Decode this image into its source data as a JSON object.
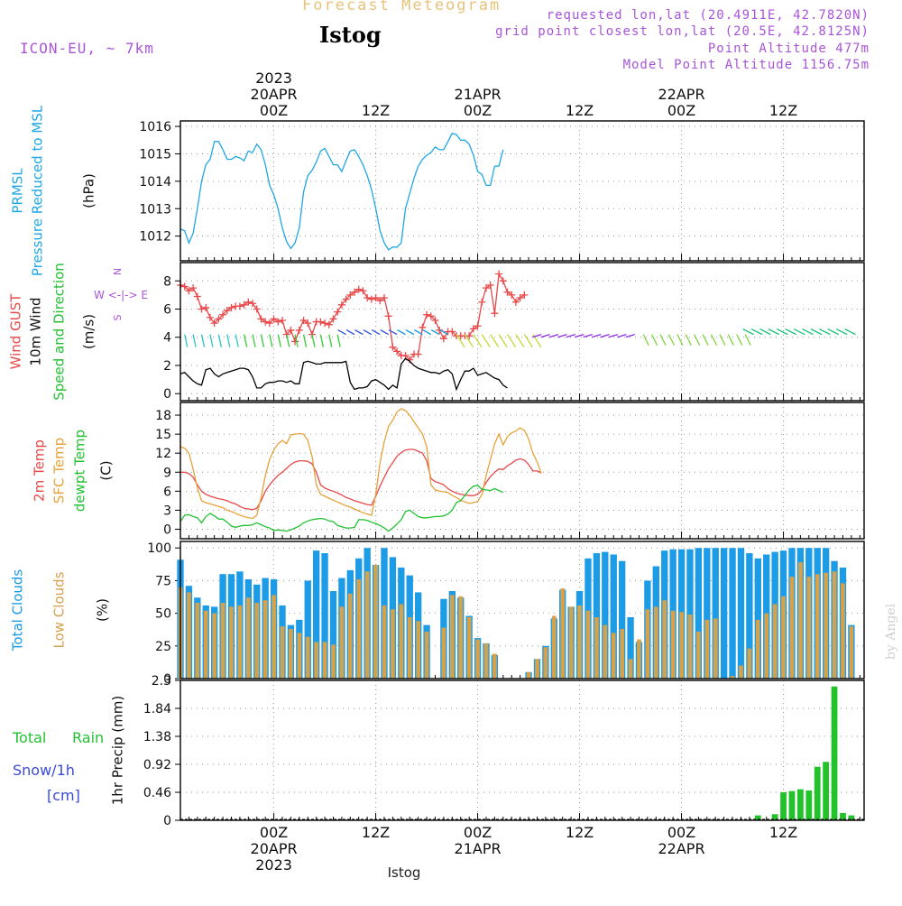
{
  "header": {
    "title": "Forecast Meteogram",
    "location": "Istog",
    "model": "ICON-EU, ~ 7km",
    "requested": "requested lon,lat (20.4911E, 42.7820N)",
    "grid_point": "grid point closest lon,lat (20.5E, 42.8125N)",
    "point_altitude": "Point Altitude 477m",
    "model_altitude": "Model Point Altitude 1156.75m",
    "credit": "by Angel",
    "footer_location": "Istog"
  },
  "time_axis": {
    "top_labels": [
      {
        "hour": 6,
        "lines": [
          "2023",
          "20APR",
          "00Z"
        ]
      },
      {
        "hour": 18,
        "lines": [
          "12Z"
        ]
      },
      {
        "hour": 30,
        "lines": [
          "21APR",
          "00Z"
        ]
      },
      {
        "hour": 42,
        "lines": [
          "12Z"
        ]
      },
      {
        "hour": 54,
        "lines": [
          "22APR",
          "00Z"
        ]
      },
      {
        "hour": 66,
        "lines": [
          "12Z"
        ]
      }
    ],
    "bottom_labels": [
      {
        "hour": 6,
        "lines": [
          "00Z",
          "20APR",
          "2023"
        ]
      },
      {
        "hour": 18,
        "lines": [
          "12Z"
        ]
      },
      {
        "hour": 30,
        "lines": [
          "00Z",
          "21APR"
        ]
      },
      {
        "hour": 42,
        "lines": [
          "12Z"
        ]
      },
      {
        "hour": 54,
        "lines": [
          "00Z",
          "22APR"
        ]
      },
      {
        "hour": 66,
        "lines": [
          "12Z"
        ]
      }
    ]
  },
  "chart_data": [
    {
      "type": "line",
      "title": "Pressure",
      "ylabel_lines": [
        "PRMSL",
        "Pressure Reduced to MSL",
        "(hPa)"
      ],
      "ylim": [
        1011.1,
        1016.2
      ],
      "yticks": [
        1012,
        1013,
        1014,
        1015,
        1016
      ],
      "grid": true,
      "x_start_hour": -5,
      "x_step_hours": 0.5,
      "series": [
        {
          "name": "PRMSL",
          "color": "#1ea7e4",
          "values": [
            1012.25,
            1012.2,
            1011.75,
            1012.1,
            1013.0,
            1014.0,
            1014.6,
            1014.8,
            1015.45,
            1015.45,
            1015.15,
            1014.8,
            1014.8,
            1014.9,
            1014.85,
            1014.75,
            1015.1,
            1015.05,
            1015.35,
            1015.15,
            1014.6,
            1013.85,
            1013.5,
            1013.0,
            1012.3,
            1011.8,
            1011.55,
            1011.75,
            1012.3,
            1013.6,
            1014.2,
            1014.4,
            1014.7,
            1015.1,
            1015.2,
            1014.9,
            1014.6,
            1014.6,
            1014.35,
            1014.75,
            1015.1,
            1015.15,
            1014.9,
            1014.6,
            1014.2,
            1013.7,
            1013.0,
            1012.2,
            1011.75,
            1011.5,
            1011.6,
            1011.6,
            1011.75,
            1013.0,
            1013.55,
            1014.1,
            1014.55,
            1014.8,
            1014.95,
            1015.05,
            1015.25,
            1015.15,
            1015.15,
            1015.45,
            1015.75,
            1015.7,
            1015.5,
            1015.5,
            1015.35,
            1014.95,
            1014.35,
            1014.25,
            1013.85,
            1013.85,
            1014.55,
            1014.55,
            1015.15
          ]
        }
      ]
    },
    {
      "type": "line",
      "title": "Wind",
      "ylabel_lines": [
        "Wind GUST",
        "10m Wind",
        "Speed and Direction",
        "(m/s)"
      ],
      "compass": [
        "N",
        "W <-|-> E",
        "S"
      ],
      "ylim": [
        -0.5,
        9.3
      ],
      "yticks": [
        0,
        2,
        4,
        6,
        8
      ],
      "grid": true,
      "x_start_hour": -5,
      "x_step_hours": 0.5,
      "series": [
        {
          "name": "Wind GUST",
          "color": "#e8494a",
          "marker": "+",
          "values": [
            7.7,
            7.6,
            7.3,
            7.5,
            6.9,
            6.0,
            6.1,
            5.4,
            5.0,
            5.3,
            5.6,
            5.9,
            6.1,
            6.2,
            6.2,
            6.3,
            6.5,
            6.4,
            6.0,
            5.3,
            5.1,
            5.0,
            5.3,
            5.1,
            5.2,
            4.2,
            4.5,
            3.7,
            4.5,
            5.2,
            5.0,
            4.2,
            5.1,
            5.1,
            5.0,
            4.9,
            5.3,
            5.8,
            6.3,
            6.7,
            7.0,
            7.2,
            7.4,
            7.3,
            6.8,
            6.7,
            6.8,
            6.6,
            6.8,
            5.5,
            3.3,
            3.0,
            2.7,
            2.7,
            2.4,
            2.8,
            2.8,
            4.7,
            5.6,
            5.5,
            5.2,
            4.5,
            3.9,
            4.4,
            4.4,
            4.1,
            4.1,
            4.1,
            4.1,
            4.6,
            4.8,
            6.5,
            7.5,
            7.7,
            5.7,
            8.5,
            8.0,
            7.2,
            7.0,
            6.5,
            6.8,
            7.0
          ]
        },
        {
          "name": "10m Wind",
          "color": "#000000",
          "values": [
            1.4,
            1.5,
            1.2,
            0.9,
            0.7,
            0.6,
            1.7,
            1.8,
            1.4,
            1.2,
            1.4,
            1.5,
            1.6,
            1.7,
            1.8,
            1.8,
            1.7,
            1.2,
            0.4,
            0.4,
            0.7,
            0.8,
            0.8,
            0.9,
            0.9,
            0.8,
            0.9,
            0.7,
            0.7,
            2.2,
            2.3,
            2.2,
            2.1,
            2.1,
            2.2,
            2.2,
            2.2,
            2.2,
            2.2,
            2.3,
            0.8,
            0.3,
            0.4,
            0.4,
            0.5,
            0.9,
            1.0,
            0.8,
            0.6,
            0.3,
            0.6,
            0.4,
            2.1,
            2.5,
            2.3,
            2.0,
            1.8,
            1.7,
            1.6,
            1.5,
            1.5,
            1.4,
            1.6,
            1.7,
            1.4,
            0.3,
            1.0,
            1.6,
            1.6,
            1.8,
            1.3,
            1.4,
            1.5,
            1.3,
            1.1,
            1.0,
            0.6,
            0.4
          ]
        }
      ]
    },
    {
      "type": "line",
      "title": "Temperature",
      "ylabel_lines": [
        "2m Temp",
        "SFC Temp",
        "dewpt Temp",
        "(C)"
      ],
      "ylim": [
        -1.5,
        20
      ],
      "yticks": [
        0,
        3,
        6,
        9,
        12,
        15,
        18
      ],
      "grid": true,
      "x_start_hour": -5,
      "x_step_hours": 0.5,
      "series": [
        {
          "name": "2m Temp",
          "color": "#e8494a",
          "values": [
            9.0,
            9.0,
            8.8,
            8.2,
            7.0,
            6.0,
            5.5,
            5.2,
            5.0,
            4.8,
            4.7,
            4.5,
            4.2,
            4.0,
            3.6,
            3.3,
            3.2,
            3.1,
            3.3,
            4.5,
            6.0,
            7.0,
            7.8,
            8.5,
            9.0,
            9.6,
            10.2,
            10.6,
            10.8,
            10.8,
            10.7,
            10.3,
            9.0,
            7.0,
            6.5,
            6.2,
            6.0,
            5.7,
            5.4,
            5.0,
            4.8,
            4.5,
            4.3,
            4.1,
            3.9,
            3.8,
            5.2,
            6.8,
            8.2,
            9.5,
            10.5,
            11.5,
            12.1,
            12.5,
            12.6,
            12.6,
            12.3,
            12.0,
            10.8,
            8.0,
            7.5,
            7.3,
            7.0,
            6.4,
            6.0,
            5.7,
            5.5,
            5.4,
            5.3,
            5.3,
            5.5,
            6.2,
            7.4,
            8.3,
            9.0,
            9.5,
            9.4,
            10.0,
            10.4,
            10.9,
            11.1,
            10.9,
            10.2,
            9.2,
            9.2,
            8.9
          ]
        },
        {
          "name": "SFC Temp",
          "color": "#e8a23a",
          "values": [
            13.0,
            12.8,
            12.0,
            9.5,
            6.5,
            4.5,
            4.2,
            4.0,
            3.8,
            3.6,
            3.4,
            3.0,
            2.8,
            2.5,
            2.2,
            2.0,
            1.8,
            1.7,
            2.2,
            5.0,
            8.5,
            11.0,
            12.5,
            13.5,
            14.0,
            13.5,
            14.9,
            15.0,
            15.1,
            15.0,
            14.0,
            11.5,
            7.0,
            5.5,
            5.2,
            4.9,
            4.6,
            4.3,
            4.0,
            3.7,
            3.5,
            3.2,
            2.9,
            2.6,
            2.4,
            2.2,
            5.5,
            10.5,
            13.8,
            16.2,
            17.2,
            18.5,
            19.0,
            18.7,
            18.0,
            17.0,
            16.0,
            15.0,
            13.0,
            7.0,
            6.2,
            6.0,
            5.9,
            5.8,
            5.3,
            5.0,
            4.6,
            4.3,
            4.1,
            4.2,
            4.4,
            5.5,
            8.5,
            11.0,
            13.5,
            15.0,
            13.3,
            14.6,
            15.2,
            15.5,
            16.0,
            15.6,
            14.2,
            12.0,
            10.6,
            8.8
          ]
        },
        {
          "name": "dewpt Temp",
          "color": "#22c032",
          "values": [
            1.2,
            2.2,
            2.3,
            2.0,
            1.8,
            1.0,
            2.0,
            2.5,
            2.1,
            1.6,
            1.6,
            1.1,
            0.5,
            0.3,
            0.5,
            0.6,
            0.6,
            0.7,
            1.0,
            0.7,
            0.4,
            0.2,
            -0.2,
            -0.1,
            -0.2,
            -0.3,
            -0.1,
            0.2,
            0.5,
            1.0,
            1.3,
            1.5,
            1.6,
            1.7,
            1.6,
            1.3,
            1.2,
            0.6,
            0.4,
            0.2,
            0.2,
            0.3,
            1.5,
            1.5,
            1.4,
            1.1,
            0.9,
            0.6,
            0.2,
            -0.3,
            0.2,
            0.8,
            1.5,
            2.8,
            3.0,
            2.5,
            2.0,
            1.8,
            1.8,
            1.9,
            2.0,
            2.0,
            2.1,
            2.4,
            3.0,
            4.2,
            4.5,
            5.3,
            6.2,
            6.8,
            6.9,
            6.3,
            6.2,
            6.1,
            6.4,
            6.1,
            5.8
          ]
        }
      ]
    },
    {
      "type": "bar",
      "title": "Clouds",
      "ylabel_lines": [
        "Total Clouds",
        "Low Clouds",
        "(%)"
      ],
      "ylim": [
        0,
        105
      ],
      "yticks": [
        0,
        25,
        50,
        75,
        100
      ],
      "grid": true,
      "x_start_hour": -5,
      "x_step_hours": 1,
      "series": [
        {
          "name": "Total Clouds",
          "color": "#1c9be6",
          "values": [
            91,
            71,
            62,
            56,
            55,
            80,
            80,
            82,
            76,
            72,
            77,
            76,
            56,
            41,
            45,
            75,
            98,
            96,
            67,
            77,
            83,
            92,
            100,
            87,
            100,
            93,
            85,
            79,
            66,
            41,
            0,
            61,
            67,
            62,
            48,
            31,
            27,
            18,
            0,
            0,
            0,
            5,
            15,
            25,
            46,
            68,
            55,
            67,
            92,
            96,
            97,
            95,
            90,
            47,
            28,
            75,
            86,
            98,
            99,
            99,
            99,
            100,
            100,
            100,
            100,
            100,
            100,
            96,
            92,
            95,
            97,
            98,
            100,
            100,
            100,
            100,
            100,
            90,
            85,
            41
          ]
        },
        {
          "name": "Low Clouds",
          "color": "#d4a24c",
          "values": [
            70,
            66,
            58,
            52,
            50,
            58,
            55,
            56,
            62,
            58,
            60,
            64,
            40,
            38,
            35,
            32,
            28,
            28,
            26,
            55,
            65,
            76,
            82,
            87,
            56,
            53,
            57,
            47,
            44,
            36,
            0,
            39,
            64,
            63,
            47,
            30,
            27,
            19,
            0,
            0,
            0,
            5,
            15,
            24,
            48,
            69,
            55,
            56,
            52,
            47,
            41,
            35,
            38,
            15,
            30,
            53,
            55,
            60,
            52,
            51,
            49,
            36,
            45,
            46,
            0,
            2,
            10,
            23,
            45,
            50,
            57,
            63,
            78,
            89,
            78,
            80,
            81,
            82,
            73,
            40
          ]
        }
      ]
    },
    {
      "type": "bar",
      "title": "Precipitation",
      "ylabel_lines": [
        "1hr Precip (mm)"
      ],
      "side_labels": [
        "Total",
        "Rain",
        "Snow/1h",
        "[cm]"
      ],
      "ylim": [
        0,
        2.3
      ],
      "yticks": [
        0,
        0.46,
        0.92,
        1.38,
        1.84,
        2.3
      ],
      "grid": true,
      "x_start_hour": -5,
      "x_step_hours": 1,
      "series": [
        {
          "name": "Total Rain",
          "color": "#22c32a",
          "values": [
            0,
            0,
            0,
            0,
            0,
            0,
            0,
            0,
            0,
            0,
            0,
            0,
            0,
            0,
            0,
            0,
            0,
            0,
            0,
            0,
            0,
            0,
            0,
            0,
            0,
            0,
            0,
            0,
            0,
            0,
            0,
            0,
            0,
            0,
            0,
            0,
            0,
            0,
            0,
            0,
            0,
            0,
            0,
            0,
            0,
            0,
            0,
            0,
            0,
            0,
            0,
            0,
            0,
            0,
            0,
            0,
            0,
            0,
            0,
            0,
            0,
            0,
            0,
            0,
            0,
            0,
            0,
            0,
            0.08,
            0,
            0.1,
            0.46,
            0.48,
            0.51,
            0.49,
            0.88,
            0.96,
            2.2,
            0.12,
            0.08
          ]
        },
        {
          "name": "Snow/1h",
          "color": "#3a4ad8",
          "values": [
            0,
            0,
            0,
            0,
            0,
            0,
            0,
            0,
            0,
            0,
            0,
            0,
            0,
            0,
            0,
            0,
            0,
            0,
            0,
            0,
            0,
            0,
            0,
            0,
            0,
            0,
            0,
            0,
            0,
            0,
            0,
            0,
            0,
            0,
            0,
            0,
            0,
            0,
            0,
            0,
            0,
            0,
            0,
            0,
            0,
            0,
            0,
            0,
            0,
            0,
            0,
            0,
            0,
            0,
            0,
            0,
            0,
            0,
            0,
            0,
            0,
            0,
            0,
            0,
            0,
            0,
            0,
            0,
            0,
            0,
            0,
            0,
            0,
            0,
            0,
            0,
            0,
            0,
            0,
            0
          ]
        }
      ]
    }
  ]
}
